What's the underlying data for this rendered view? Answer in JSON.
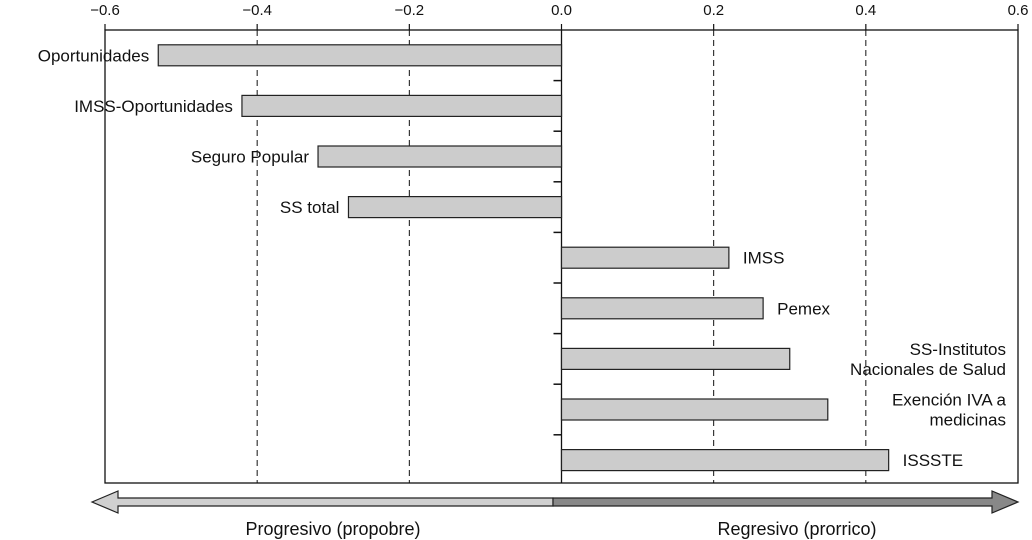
{
  "chart_data": {
    "type": "bar",
    "orientation": "horizontal",
    "title": "",
    "xlabel": "",
    "ylabel": "",
    "xlim": [
      -0.6,
      0.6
    ],
    "xticks": [
      -0.6,
      -0.4,
      -0.2,
      0.0,
      0.2,
      0.4,
      0.6
    ],
    "xtick_labels": [
      "−0.6",
      "−0.4",
      "−0.2",
      "0.0",
      "0.2",
      "0.4",
      "0.6"
    ],
    "gridlines": "dashed vertical at tick positions",
    "categories": [
      "Oportunidades",
      "IMSS-Oportunidades",
      "Seguro Popular",
      "SS total",
      "IMSS",
      "Pemex",
      "SS-Institutos Nacionales de Salud",
      "Exención IVA a medicinas",
      "ISSSTE"
    ],
    "category_label_lines": [
      [
        "Oportunidades"
      ],
      [
        "IMSS-Oportunidades"
      ],
      [
        "Seguro Popular"
      ],
      [
        "SS total"
      ],
      [
        "IMSS"
      ],
      [
        "Pemex"
      ],
      [
        "SS-Institutos",
        "Nacionales de Salud"
      ],
      [
        "Exención IVA a",
        "medicinas"
      ],
      [
        "ISSSTE"
      ]
    ],
    "values": [
      -0.53,
      -0.42,
      -0.32,
      -0.28,
      0.22,
      0.265,
      0.3,
      0.35,
      0.43
    ],
    "bar_color": "#cccccc",
    "bar_edge_color": "#222222"
  },
  "arrow": {
    "left_label": "Progresivo (propobre)",
    "right_label": "Regresivo (prorrico)",
    "left_color": "#d0d0d0",
    "right_color": "#888888"
  }
}
